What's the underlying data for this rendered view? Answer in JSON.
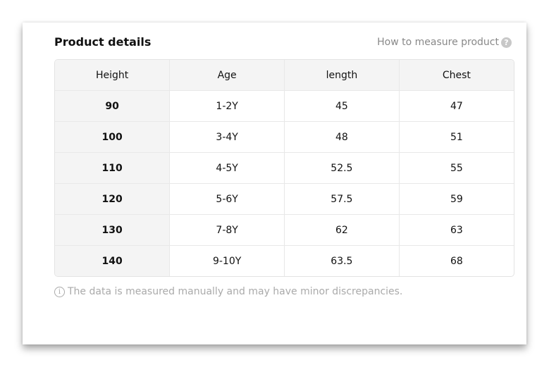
{
  "title": "Product details",
  "how_to_measure": "How to measure product",
  "help_icon": "question-circle-icon",
  "table": {
    "headers": [
      "Height",
      "Age",
      "length",
      "Chest"
    ],
    "rows": [
      [
        "90",
        "1-2Y",
        "45",
        "47"
      ],
      [
        "100",
        "3-4Y",
        "48",
        "51"
      ],
      [
        "110",
        "4-5Y",
        "52.5",
        "55"
      ],
      [
        "120",
        "5-6Y",
        "57.5",
        "59"
      ],
      [
        "130",
        "7-8Y",
        "62",
        "63"
      ],
      [
        "140",
        "9-10Y",
        "63.5",
        "68"
      ]
    ]
  },
  "note": "The data is measured manually and may have minor discrepancies.",
  "note_icon": "info-circle-icon"
}
